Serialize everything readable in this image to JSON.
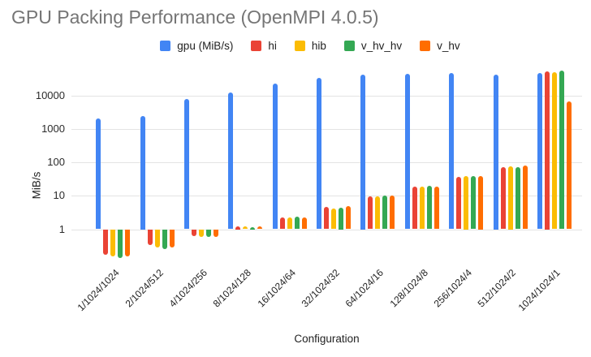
{
  "chart_data": {
    "type": "bar",
    "title": "GPU Packing Performance (OpenMPI 4.0.5)",
    "xlabel": "Configuration",
    "ylabel": "MiB/s",
    "y_scale": "log",
    "y_ticks": [
      1,
      10,
      100,
      1000,
      10000
    ],
    "ylim": [
      0.1,
      100000
    ],
    "baseline": 1,
    "grid": true,
    "legend_position": "top-center",
    "categories": [
      "1/1024/1024",
      "2/1024/512",
      "4/1024/256",
      "8/1024/128",
      "16/1024/64",
      "32/1024/32",
      "64/1024/16",
      "128/1024/8",
      "256/1024/4",
      "512/1024/2",
      "1024/1024/1"
    ],
    "series": [
      {
        "name": "gpu (MiB/s)",
        "color": "#4285F4",
        "values": [
          2100,
          2500,
          8000,
          12500,
          22500,
          33000,
          42000,
          44000,
          46000,
          42000,
          48000
        ]
      },
      {
        "name": "hi",
        "color": "#EA4335",
        "values": [
          0.17,
          0.33,
          0.63,
          1.25,
          2.3,
          4.6,
          9.7,
          19,
          37,
          73,
          54000
        ]
      },
      {
        "name": "hib",
        "color": "#FBBC04",
        "values": [
          0.15,
          0.29,
          0.6,
          1.2,
          2.3,
          4.2,
          9.5,
          19,
          40,
          78,
          50000
        ]
      },
      {
        "name": "v_hv_hv",
        "color": "#34A853",
        "values": [
          0.14,
          0.26,
          0.6,
          1.15,
          2.4,
          4.4,
          10,
          20,
          38,
          73,
          55000
        ]
      },
      {
        "name": "v_hv",
        "color": "#FF6D01",
        "values": [
          0.15,
          0.28,
          0.58,
          1.2,
          2.3,
          4.8,
          10,
          19,
          40,
          80,
          6600
        ]
      }
    ]
  }
}
